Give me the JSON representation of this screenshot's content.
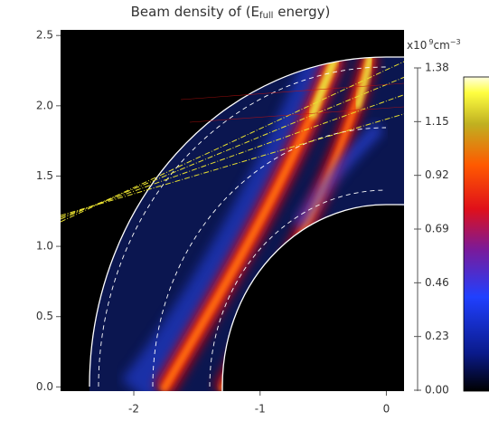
{
  "chart_data": {
    "type": "heatmap",
    "title": [
      "Beam density of (E",
      "full",
      " energy)"
    ],
    "xlim": [
      -2.58,
      0.14
    ],
    "ylim": [
      -0.03,
      2.54
    ],
    "xticks": [
      -2,
      -1,
      0
    ],
    "yticks": [
      {
        "value": 0,
        "label": "0.0"
      },
      0.5,
      {
        "value": 1,
        "label": "1.0"
      },
      1.5,
      {
        "value": 2,
        "label": "2.0"
      },
      2.5
    ],
    "colorbar": {
      "unit": [
        "x10",
        "9",
        "cm",
        "−3"
      ],
      "clim": [
        0,
        1.38
      ],
      "ticks": [
        {
          "value": 0,
          "label": "0.00"
        },
        0.23,
        0.46,
        0.69,
        0.92,
        1.15,
        1.38
      ]
    }
  }
}
